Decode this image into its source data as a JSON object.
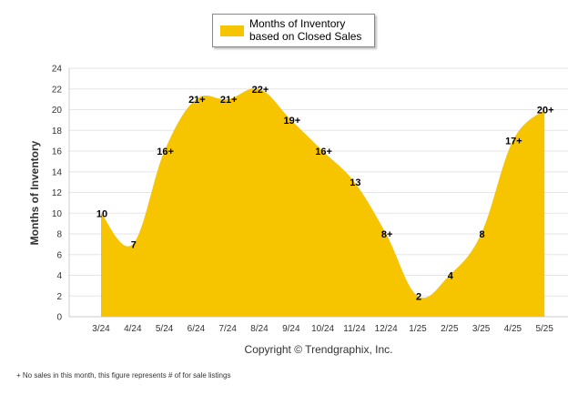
{
  "chart_data": {
    "type": "area",
    "categories": [
      "3/24",
      "4/24",
      "5/24",
      "6/24",
      "7/24",
      "8/24",
      "9/24",
      "10/24",
      "11/24",
      "12/24",
      "1/25",
      "2/25",
      "3/25",
      "4/25",
      "5/25"
    ],
    "values": [
      10,
      7,
      16,
      21,
      21,
      22,
      19,
      16,
      13,
      8,
      2,
      4,
      8,
      17,
      20
    ],
    "data_labels": [
      "10",
      "7",
      "16+",
      "21+",
      "21+",
      "22+",
      "19+",
      "16+",
      "13",
      "8+",
      "2",
      "4",
      "8",
      "17+",
      "20+"
    ],
    "ylabel": "Months of Inventory",
    "xlabel": "",
    "ylim": [
      0,
      24
    ],
    "yticks": [
      0,
      2,
      4,
      6,
      8,
      10,
      12,
      14,
      16,
      18,
      20,
      22,
      24
    ],
    "grid": true,
    "legend": {
      "placement": "top-center",
      "label": "Months of Inventory based on Closed Sales"
    },
    "color": "#F7C400"
  },
  "copyright": "Copyright © Trendgraphix, Inc.",
  "footnote": "+ No sales in this month, this figure represents # of for sale listings"
}
